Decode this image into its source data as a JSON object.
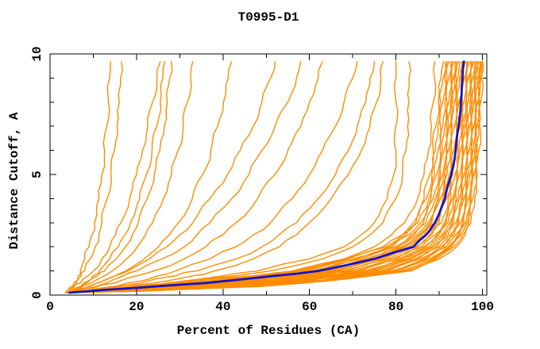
{
  "window": {
    "title": "T0995-D1"
  },
  "colors": {
    "background": "#ffffff",
    "axis": "#000000",
    "model_curve": "#ff8c00",
    "highlight_curve": "#1414cc"
  },
  "chart_data": {
    "type": "line",
    "title": "T0995-D1",
    "xlabel": "Percent of Residues (CA)",
    "ylabel": "Distance Cutoff, A",
    "xlim": [
      0,
      101
    ],
    "ylim": [
      0,
      10
    ],
    "grid": false,
    "legend": "none",
    "x_major_ticks": [
      0,
      20,
      40,
      60,
      80,
      100
    ],
    "x_minor_ticks": [
      10,
      30,
      50,
      70,
      90
    ],
    "x_tick_labels": [
      "0",
      "20",
      "40",
      "60",
      "80",
      "100"
    ],
    "y_major_ticks": [
      0,
      5,
      10
    ],
    "y_minor_ticks": [
      1,
      2,
      3,
      4,
      6,
      7,
      8,
      9
    ],
    "y_tick_labels": [
      "0",
      "5",
      "10"
    ],
    "description": "GDT-style plot: each curve gives percent of CA residues (x) under a distance cutoff in Angstroms (y); orange = server models, blue = highlighted model",
    "cutoff_levels": [
      0.1,
      0.3,
      0.5,
      0.8,
      1.0,
      1.5,
      2.0,
      2.5,
      3.0,
      4.0,
      5.0,
      6.0,
      7.0,
      8.0,
      9.0,
      9.68
    ],
    "highlight_model_percents": [
      4.5,
      20,
      36,
      52,
      62,
      75,
      84,
      87,
      89,
      91.3,
      92.8,
      93.8,
      94.5,
      95,
      95.4,
      95.7
    ],
    "models_percents": [
      [
        3.5,
        4.5,
        5.5,
        6.5,
        7,
        8,
        9,
        9.7,
        10.3,
        11.3,
        12,
        12.6,
        13.1,
        13.5,
        13.8,
        14
      ],
      [
        3.6,
        5,
        6,
        7.2,
        8,
        9.3,
        10.4,
        11.3,
        12,
        13.2,
        14.1,
        14.9,
        15.5,
        16,
        16.3,
        16.5
      ],
      [
        3.8,
        5.5,
        7,
        8.8,
        10,
        12,
        13.8,
        15.2,
        16.4,
        18.4,
        20,
        21.4,
        22.6,
        23.7,
        24.7,
        25.5
      ],
      [
        3.9,
        6,
        7.8,
        10,
        11.4,
        13.8,
        15.8,
        17.3,
        18.6,
        20.7,
        22.3,
        23.6,
        24.7,
        25.5,
        26.1,
        26.5
      ],
      [
        4,
        6.5,
        8.5,
        11,
        12.6,
        15.3,
        17.4,
        19,
        20.4,
        22.5,
        24.1,
        25.4,
        26.4,
        27.1,
        27.7,
        28
      ],
      [
        4.1,
        7,
        9.5,
        12.5,
        14.4,
        17.7,
        20.2,
        22.1,
        23.7,
        26.2,
        28.1,
        29.6,
        30.8,
        31.8,
        32.5,
        33
      ],
      [
        4.3,
        8,
        11,
        15,
        17.5,
        21.8,
        25.1,
        27.6,
        29.7,
        32.9,
        35.3,
        37.2,
        38.8,
        40.1,
        41.2,
        42
      ],
      [
        4,
        8,
        11,
        15,
        18,
        23,
        27,
        30,
        33,
        37,
        41,
        44,
        47,
        49,
        51,
        52
      ],
      [
        4.2,
        9,
        13,
        17,
        20,
        26,
        31,
        34,
        37,
        42,
        46,
        49,
        52,
        55,
        57,
        58
      ],
      [
        4.4,
        10,
        15,
        20,
        24,
        31,
        36,
        40,
        43,
        48,
        52,
        55,
        58,
        60,
        62,
        63
      ],
      [
        4.6,
        12,
        18,
        25,
        29,
        37,
        43,
        47,
        51,
        56,
        60,
        63,
        66,
        68,
        70,
        71
      ],
      [
        4.8,
        14,
        21,
        29,
        34,
        43,
        49,
        53,
        57,
        62,
        66,
        69,
        71,
        73,
        74,
        75
      ],
      [
        5,
        16,
        24,
        33,
        38,
        47,
        53,
        57,
        60,
        65,
        69,
        72,
        74,
        75.5,
        76.5,
        77
      ],
      [
        5,
        18,
        27,
        40,
        48,
        60,
        68,
        72,
        75,
        78,
        79.5,
        80,
        80,
        80,
        80,
        80
      ],
      [
        5.2,
        19,
        29,
        43,
        51,
        63,
        70,
        74,
        77,
        80,
        81.5,
        82.3,
        82.7,
        83,
        83,
        83
      ],
      [
        5.4,
        22,
        33,
        48,
        56,
        68,
        75,
        79,
        82,
        85,
        86.5,
        87.5,
        88.2,
        88.6,
        88.9,
        89
      ],
      [
        4,
        15,
        30,
        47,
        57,
        68,
        77,
        81.5,
        84,
        86.5,
        87.8,
        88.6,
        89.2,
        89.8,
        90.4,
        91
      ],
      [
        4.3,
        16,
        31.2,
        48,
        58.1,
        68.9,
        77.7,
        81.6,
        84.6,
        87,
        88.3,
        89.1,
        89.7,
        90.3,
        90.9,
        91.4
      ],
      [
        4.6,
        17,
        32.5,
        49,
        59.2,
        70,
        78.4,
        82.3,
        85.1,
        87.6,
        88.9,
        89.7,
        90.3,
        90.8,
        91.3,
        91.8
      ],
      [
        4.9,
        18,
        33.7,
        50.2,
        60.3,
        71,
        79.1,
        83,
        85.7,
        88.1,
        89.4,
        90.2,
        90.8,
        91.3,
        91.8,
        92.2
      ],
      [
        4.2,
        19,
        34.9,
        51.4,
        61.4,
        72,
        79.8,
        83.6,
        86.3,
        88.6,
        89.9,
        90.7,
        91.3,
        91.8,
        92.2,
        92.6
      ],
      [
        4.5,
        20.1,
        36.1,
        52.5,
        62.5,
        72.9,
        80.5,
        84.2,
        86.9,
        89.1,
        90.3,
        91.1,
        91.7,
        92.2,
        92.6,
        93
      ],
      [
        4.8,
        21.1,
        37.3,
        53.7,
        63.7,
        73.9,
        81.3,
        84.9,
        87.5,
        89.6,
        90.8,
        91.6,
        92.1,
        92.6,
        93,
        93.4
      ],
      [
        4.1,
        21.9,
        38.2,
        54.5,
        64.5,
        74.6,
        81.8,
        85.4,
        87.9,
        89.9,
        91.1,
        91.8,
        92.4,
        92.9,
        93.3,
        93.7
      ],
      [
        4.4,
        22.7,
        39.1,
        55.4,
        65.3,
        75.3,
        82.3,
        85.8,
        88.3,
        90.3,
        91.4,
        92.1,
        92.7,
        93.1,
        93.5,
        94
      ],
      [
        4.7,
        23.7,
        40.3,
        56.5,
        66.4,
        76.2,
        83.1,
        86.5,
        88.9,
        90.8,
        91.8,
        92.5,
        93,
        93.5,
        93.9,
        94.4
      ],
      [
        4,
        24.7,
        41.5,
        57.7,
        67.5,
        77.1,
        83.8,
        87.1,
        89.5,
        91.2,
        92.3,
        92.9,
        93.5,
        93.9,
        94.3,
        94.8
      ],
      [
        4.3,
        25.7,
        42.7,
        58.8,
        68.6,
        78.1,
        84.5,
        87.8,
        90,
        91.7,
        92.7,
        93.4,
        93.9,
        94.3,
        94.7,
        95.2
      ],
      [
        4.6,
        26.5,
        43.6,
        59.7,
        69.5,
        78.8,
        85,
        88.3,
        90.5,
        92.1,
        93.1,
        93.7,
        94.2,
        94.6,
        95,
        95.5
      ],
      [
        4.9,
        27.8,
        45,
        61,
        70.8,
        79.9,
        85.9,
        89.1,
        91.2,
        92.7,
        93.7,
        94.3,
        94.8,
        95.2,
        95.5,
        96
      ],
      [
        4.2,
        28.5,
        45.9,
        61.9,
        71.7,
        80.6,
        86.4,
        89.5,
        91.6,
        93.1,
        94,
        94.6,
        95.1,
        95.4,
        95.8,
        96.3
      ],
      [
        4.5,
        29.3,
        46.8,
        62.7,
        72.6,
        81.3,
        87,
        90,
        92,
        93.4,
        94.3,
        94.9,
        95.4,
        95.7,
        96.1,
        96.6
      ],
      [
        4.8,
        30.3,
        48,
        64,
        73.7,
        82.2,
        87.7,
        90.6,
        92.5,
        93.9,
        94.7,
        95.3,
        95.7,
        96.1,
        96.4,
        97
      ],
      [
        4.1,
        31.1,
        48.9,
        64.9,
        74.5,
        82.9,
        88.2,
        91,
        92.9,
        94.3,
        95.1,
        95.6,
        96,
        96.4,
        96.7,
        97.3
      ],
      [
        4.4,
        31.9,
        49.8,
        65.7,
        75.3,
        83.5,
        88.7,
        91.4,
        93.3,
        94.6,
        95.4,
        95.9,
        96.3,
        96.7,
        97,
        97.6
      ],
      [
        4.7,
        32.9,
        51,
        66.9,
        76.4,
        84.4,
        89.4,
        92,
        93.8,
        95.1,
        95.8,
        96.3,
        96.7,
        97.1,
        97.4,
        98
      ],
      [
        4,
        33.7,
        51.9,
        67.8,
        77.3,
        85.1,
        89.9,
        92.5,
        94.2,
        95.4,
        96.1,
        96.6,
        97,
        97.4,
        97.7,
        98.3
      ],
      [
        4.3,
        34.5,
        52.8,
        68.6,
        78.1,
        85.7,
        90.4,
        92.9,
        94.5,
        95.7,
        96.4,
        96.9,
        97.3,
        97.7,
        98,
        98.6
      ],
      [
        4.6,
        35.3,
        53.8,
        69.5,
        78.9,
        86.4,
        91,
        93.4,
        94.9,
        96.1,
        96.8,
        97.3,
        97.7,
        98,
        98.3,
        98.9
      ],
      [
        4.9,
        36.1,
        54.7,
        70.4,
        79.8,
        87.1,
        91.5,
        93.8,
        95.3,
        96.4,
        97.1,
        97.6,
        98,
        98.3,
        98.6,
        99.2
      ],
      [
        4.2,
        36.9,
        55.6,
        71.3,
        80.6,
        87.7,
        92,
        94.3,
        95.7,
        96.8,
        97.5,
        97.9,
        98.3,
        98.6,
        98.9,
        99.5
      ],
      [
        4.5,
        37.7,
        56.5,
        72.1,
        81.4,
        88.4,
        92.5,
        94.7,
        96.1,
        97.1,
        97.8,
        98.2,
        98.6,
        98.9,
        99.2,
        99.8
      ],
      [
        4.8,
        38.3,
        57.1,
        72.7,
        82,
        88.8,
        92.9,
        95,
        96.4,
        97.4,
        98,
        98.5,
        98.8,
        99.1,
        99.4,
        100
      ],
      [
        4.4,
        39,
        58,
        73.5,
        82.7,
        89.4,
        93.4,
        95.5,
        96.8,
        97.8,
        98.4,
        98.8,
        99.1,
        99.4,
        99.6,
        100
      ],
      [
        5,
        40,
        59,
        74.5,
        83.5,
        90,
        94,
        96,
        97.3,
        98.2,
        98.8,
        99.1,
        99.4,
        99.6,
        99.8,
        100
      ]
    ]
  }
}
